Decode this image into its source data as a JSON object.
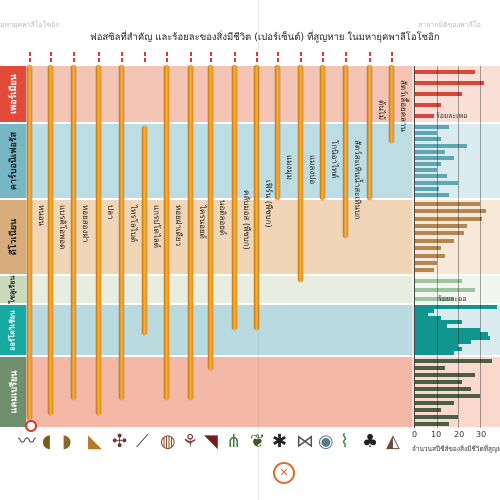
{
  "header": {
    "title": "ฟอสซิลที่สำคัญ และร้อยละของสิ่งมีชีวิต (เปอร์เซ็นต์) ที่สูญหาย  ในมหายุคพาลีโอโซอิก",
    "top_left": "มหายุคพาลีโอโซอิก",
    "top_right": "สาจากมิติของพาลีโอ"
  },
  "periods": [
    {
      "key": "cambrian",
      "label": "แคมเบรียน",
      "color": "#f4b9a6"
    },
    {
      "key": "ordovician",
      "label": "ออร์โดวิเชียน",
      "color": "#b9dbe0"
    },
    {
      "key": "silurian",
      "label": "ไซลูเรียน",
      "color": "#e7eee0"
    },
    {
      "key": "devonian",
      "label": "ดีโวเนียน",
      "color": "#f0d6b6"
    },
    {
      "key": "carboniferous",
      "label": "คาร์บอนิเฟอรัส",
      "color": "#bcdde3"
    },
    {
      "key": "permian",
      "label": "เพอร์เมียน",
      "color": "#f4c4b4"
    }
  ],
  "era_labels": {
    "permian": "เพอร์เมียน",
    "carboniferous": "คาร์บอนิเฟอรัส",
    "devonian": "ดีโวเนียน",
    "silurian": "ไซลูเรียน",
    "ordovician": "ออร์โดวิเชียน",
    "cambrian": "แคมเบรียน"
  },
  "fossils": [
    {
      "label": "หนอน",
      "icon": "worm-icon"
    },
    {
      "label": "แบรคิโอพอด",
      "icon": "brachiopod-icon"
    },
    {
      "label": "หอยสองฝา",
      "icon": "bivalve-icon"
    },
    {
      "label": "ปลา",
      "icon": "fish-icon"
    },
    {
      "label": "ไทรโลไบต์",
      "icon": "trilobite-icon"
    },
    {
      "label": "แกรปโตไลต์",
      "icon": "graptolite-icon"
    },
    {
      "label": "หอยฝาเดียว",
      "icon": "gastropod-icon"
    },
    {
      "label": "ไครนอยด์",
      "icon": "crinoid-icon"
    },
    {
      "label": "นอติลอยด์",
      "icon": "nautiloid-icon"
    },
    {
      "label": "คลับมอส (พืชบก)",
      "icon": "clubmoss-icon"
    },
    {
      "label": "เฟิร์น (พืชบก)",
      "icon": "fern-icon"
    },
    {
      "label": "แมงมุม",
      "icon": "spider-icon"
    },
    {
      "label": "แมลงปอ",
      "icon": "dragonfly-icon"
    },
    {
      "label": "โกนิอาไทต์",
      "icon": "goniatite-icon"
    },
    {
      "label": "สัตว์สะเทินน้ำสะเทินบก",
      "icon": "amphibian-icon"
    },
    {
      "label": "ต้นไม้",
      "icon": "tree-icon"
    },
    {
      "label": "สัตว์เลื้อยคลาน",
      "icon": "reptile-icon"
    }
  ],
  "side_chart": {
    "xlabel": "จำนวนสปีชีส์ของสิ่งมีชีวิตที่สูญหาย",
    "ticks": [
      "0",
      "10",
      "20",
      "30"
    ],
    "label_top": "ร้อยละเพอ",
    "label_mid": "ร้อยละออ"
  },
  "chart_data": {
    "type": "bar",
    "xlabel": "จำนวนสปีชีส์ของสิ่งมีชีวิตที่สูญหาย",
    "xlim": [
      0,
      40
    ],
    "series": [
      {
        "period": "permian",
        "values": [
          28,
          32,
          22,
          12,
          9
        ]
      },
      {
        "period": "carboniferous",
        "values": [
          16,
          10,
          12,
          24,
          14,
          18,
          12,
          10,
          15,
          20,
          11,
          16
        ]
      },
      {
        "period": "devonian",
        "values": [
          30,
          33,
          31,
          24,
          23,
          18,
          12,
          14,
          10,
          9
        ]
      },
      {
        "period": "silurian",
        "values": [
          22,
          28,
          18
        ]
      },
      {
        "period": "ordovician",
        "values": [
          38,
          9,
          6,
          12,
          22,
          15,
          30,
          34,
          35,
          26,
          20,
          22,
          18
        ]
      },
      {
        "period": "cambrian",
        "values": [
          36,
          14,
          28,
          22,
          26,
          30,
          18,
          12,
          20,
          16
        ]
      }
    ]
  }
}
